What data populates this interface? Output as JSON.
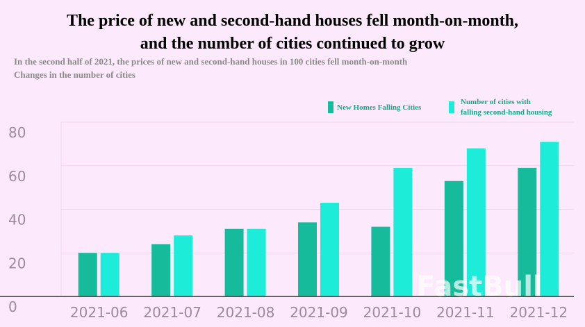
{
  "chart_data": {
    "type": "bar",
    "title_lines": [
      "The price of new and second-hand houses fell month-on-month,",
      "and the number of cities continued to grow"
    ],
    "subtitle_lines": [
      "In the second half of 2021, the prices of new and second-hand houses in 100 cities fell month-on-month",
      "Changes in the number of cities"
    ],
    "categories": [
      "2021-06",
      "2021-07",
      "2021-08",
      "2021-09",
      "2021-10",
      "2021-11",
      "2021-12"
    ],
    "series": [
      {
        "name": "New Homes Falling Cities",
        "color": "#15bb9b",
        "values": [
          20,
          24,
          31,
          34,
          32,
          53,
          59
        ]
      },
      {
        "name": [
          "Number of cities with",
          "falling second-hand housing"
        ],
        "color": "#1decd8",
        "values": [
          20,
          28,
          31,
          43,
          59,
          68,
          71
        ]
      }
    ],
    "ylim": [
      0,
      80
    ],
    "yticks": [
      0,
      20,
      40,
      60,
      80
    ],
    "grid": true,
    "watermark": "FastBull"
  }
}
